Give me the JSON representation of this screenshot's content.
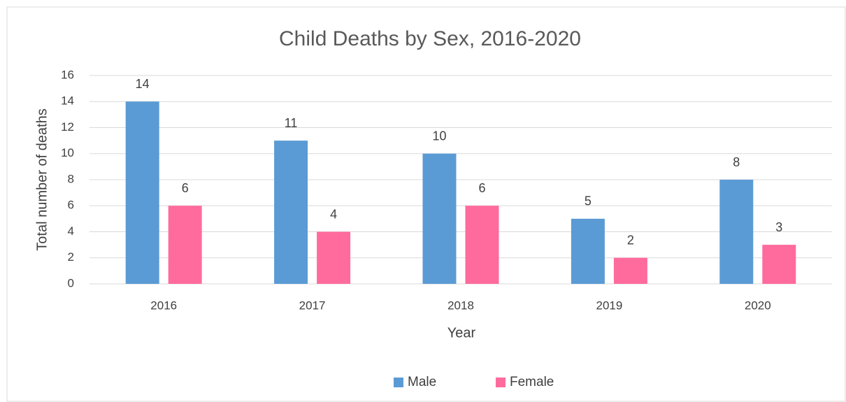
{
  "chart_data": {
    "type": "bar",
    "title": "Child Deaths by Sex, 2016-2020",
    "x_label": "Year",
    "y_label": "Total number of deaths",
    "categories": [
      "2016",
      "2017",
      "2018",
      "2019",
      "2020"
    ],
    "series": [
      {
        "name": "Male",
        "color": "#5b9bd5",
        "values": [
          14,
          11,
          10,
          5,
          8
        ]
      },
      {
        "name": "Female",
        "color": "#ff6b9d",
        "values": [
          6,
          4,
          6,
          2,
          3
        ]
      }
    ],
    "ylim": [
      0,
      16
    ],
    "yticks": [
      0,
      2,
      4,
      6,
      8,
      10,
      12,
      14,
      16
    ],
    "grid": true,
    "legend": "bottom"
  }
}
